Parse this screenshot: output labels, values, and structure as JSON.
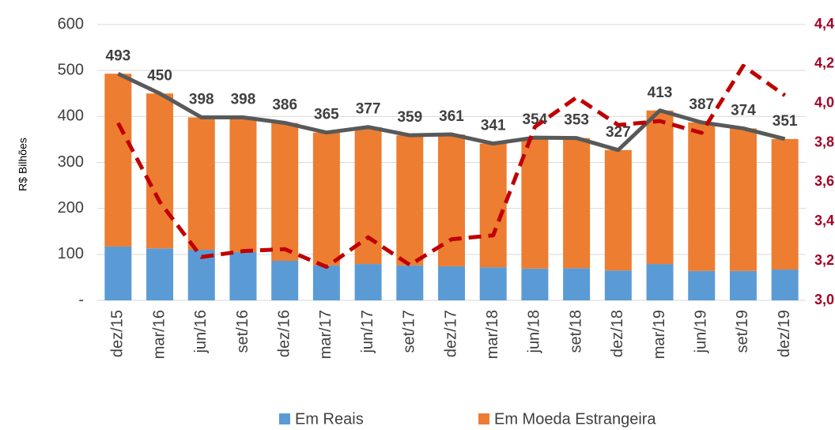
{
  "chart_data": {
    "type": "bar",
    "y_label": "R$ Bilhões",
    "categories": [
      "dez/15",
      "mar/16",
      "jun/16",
      "set/16",
      "dez/16",
      "mar/17",
      "jun/17",
      "set/17",
      "dez/17",
      "mar/18",
      "jun/18",
      "set/18",
      "dez/18",
      "mar/19",
      "jun/19",
      "set/19",
      "dez/19"
    ],
    "series": [
      {
        "name": "Em Reais",
        "color": "#5b9bd5",
        "stack": true,
        "values": [
          117,
          113,
          110,
          105,
          86,
          76,
          79,
          76,
          74,
          72,
          69,
          70,
          65,
          79,
          64,
          64,
          67
        ]
      },
      {
        "name": "Em Moeda Estrangeira",
        "color": "#ed7d31",
        "stack": true,
        "values": [
          376,
          337,
          288,
          293,
          300,
          289,
          298,
          283,
          287,
          269,
          285,
          283,
          262,
          334,
          323,
          310,
          284
        ]
      },
      {
        "type": "line",
        "color": "#595959",
        "labels": true,
        "values": [
          493,
          450,
          398,
          398,
          386,
          365,
          377,
          359,
          361,
          341,
          354,
          353,
          327,
          413,
          387,
          374,
          351
        ]
      },
      {
        "type": "line",
        "color": "#c00000",
        "dashed": true,
        "axis": "y2",
        "values": [
          3.9,
          3.5,
          3.22,
          3.25,
          3.26,
          3.17,
          3.32,
          3.18,
          3.31,
          3.33,
          3.88,
          4.03,
          3.89,
          3.91,
          3.85,
          4.19,
          4.04
        ]
      }
    ],
    "ylim": [
      0,
      600
    ],
    "yticks": [
      {
        "value": 0,
        "label": "-"
      },
      100,
      200,
      300,
      400,
      500,
      600
    ],
    "y2lim": [
      3.0,
      4.4
    ],
    "y2ticks": [
      {
        "value": 3.0,
        "label": "3,0"
      },
      {
        "value": 3.2,
        "label": "3,2"
      },
      {
        "value": 3.4,
        "label": "3,4"
      },
      {
        "value": 3.6,
        "label": "3,6"
      },
      {
        "value": 3.8,
        "label": "3,8"
      },
      {
        "value": 4.0,
        "label": "4,0"
      },
      {
        "value": 4.2,
        "label": "4,2"
      },
      {
        "value": 4.4,
        "label": "4,4"
      }
    ],
    "grid": true
  }
}
